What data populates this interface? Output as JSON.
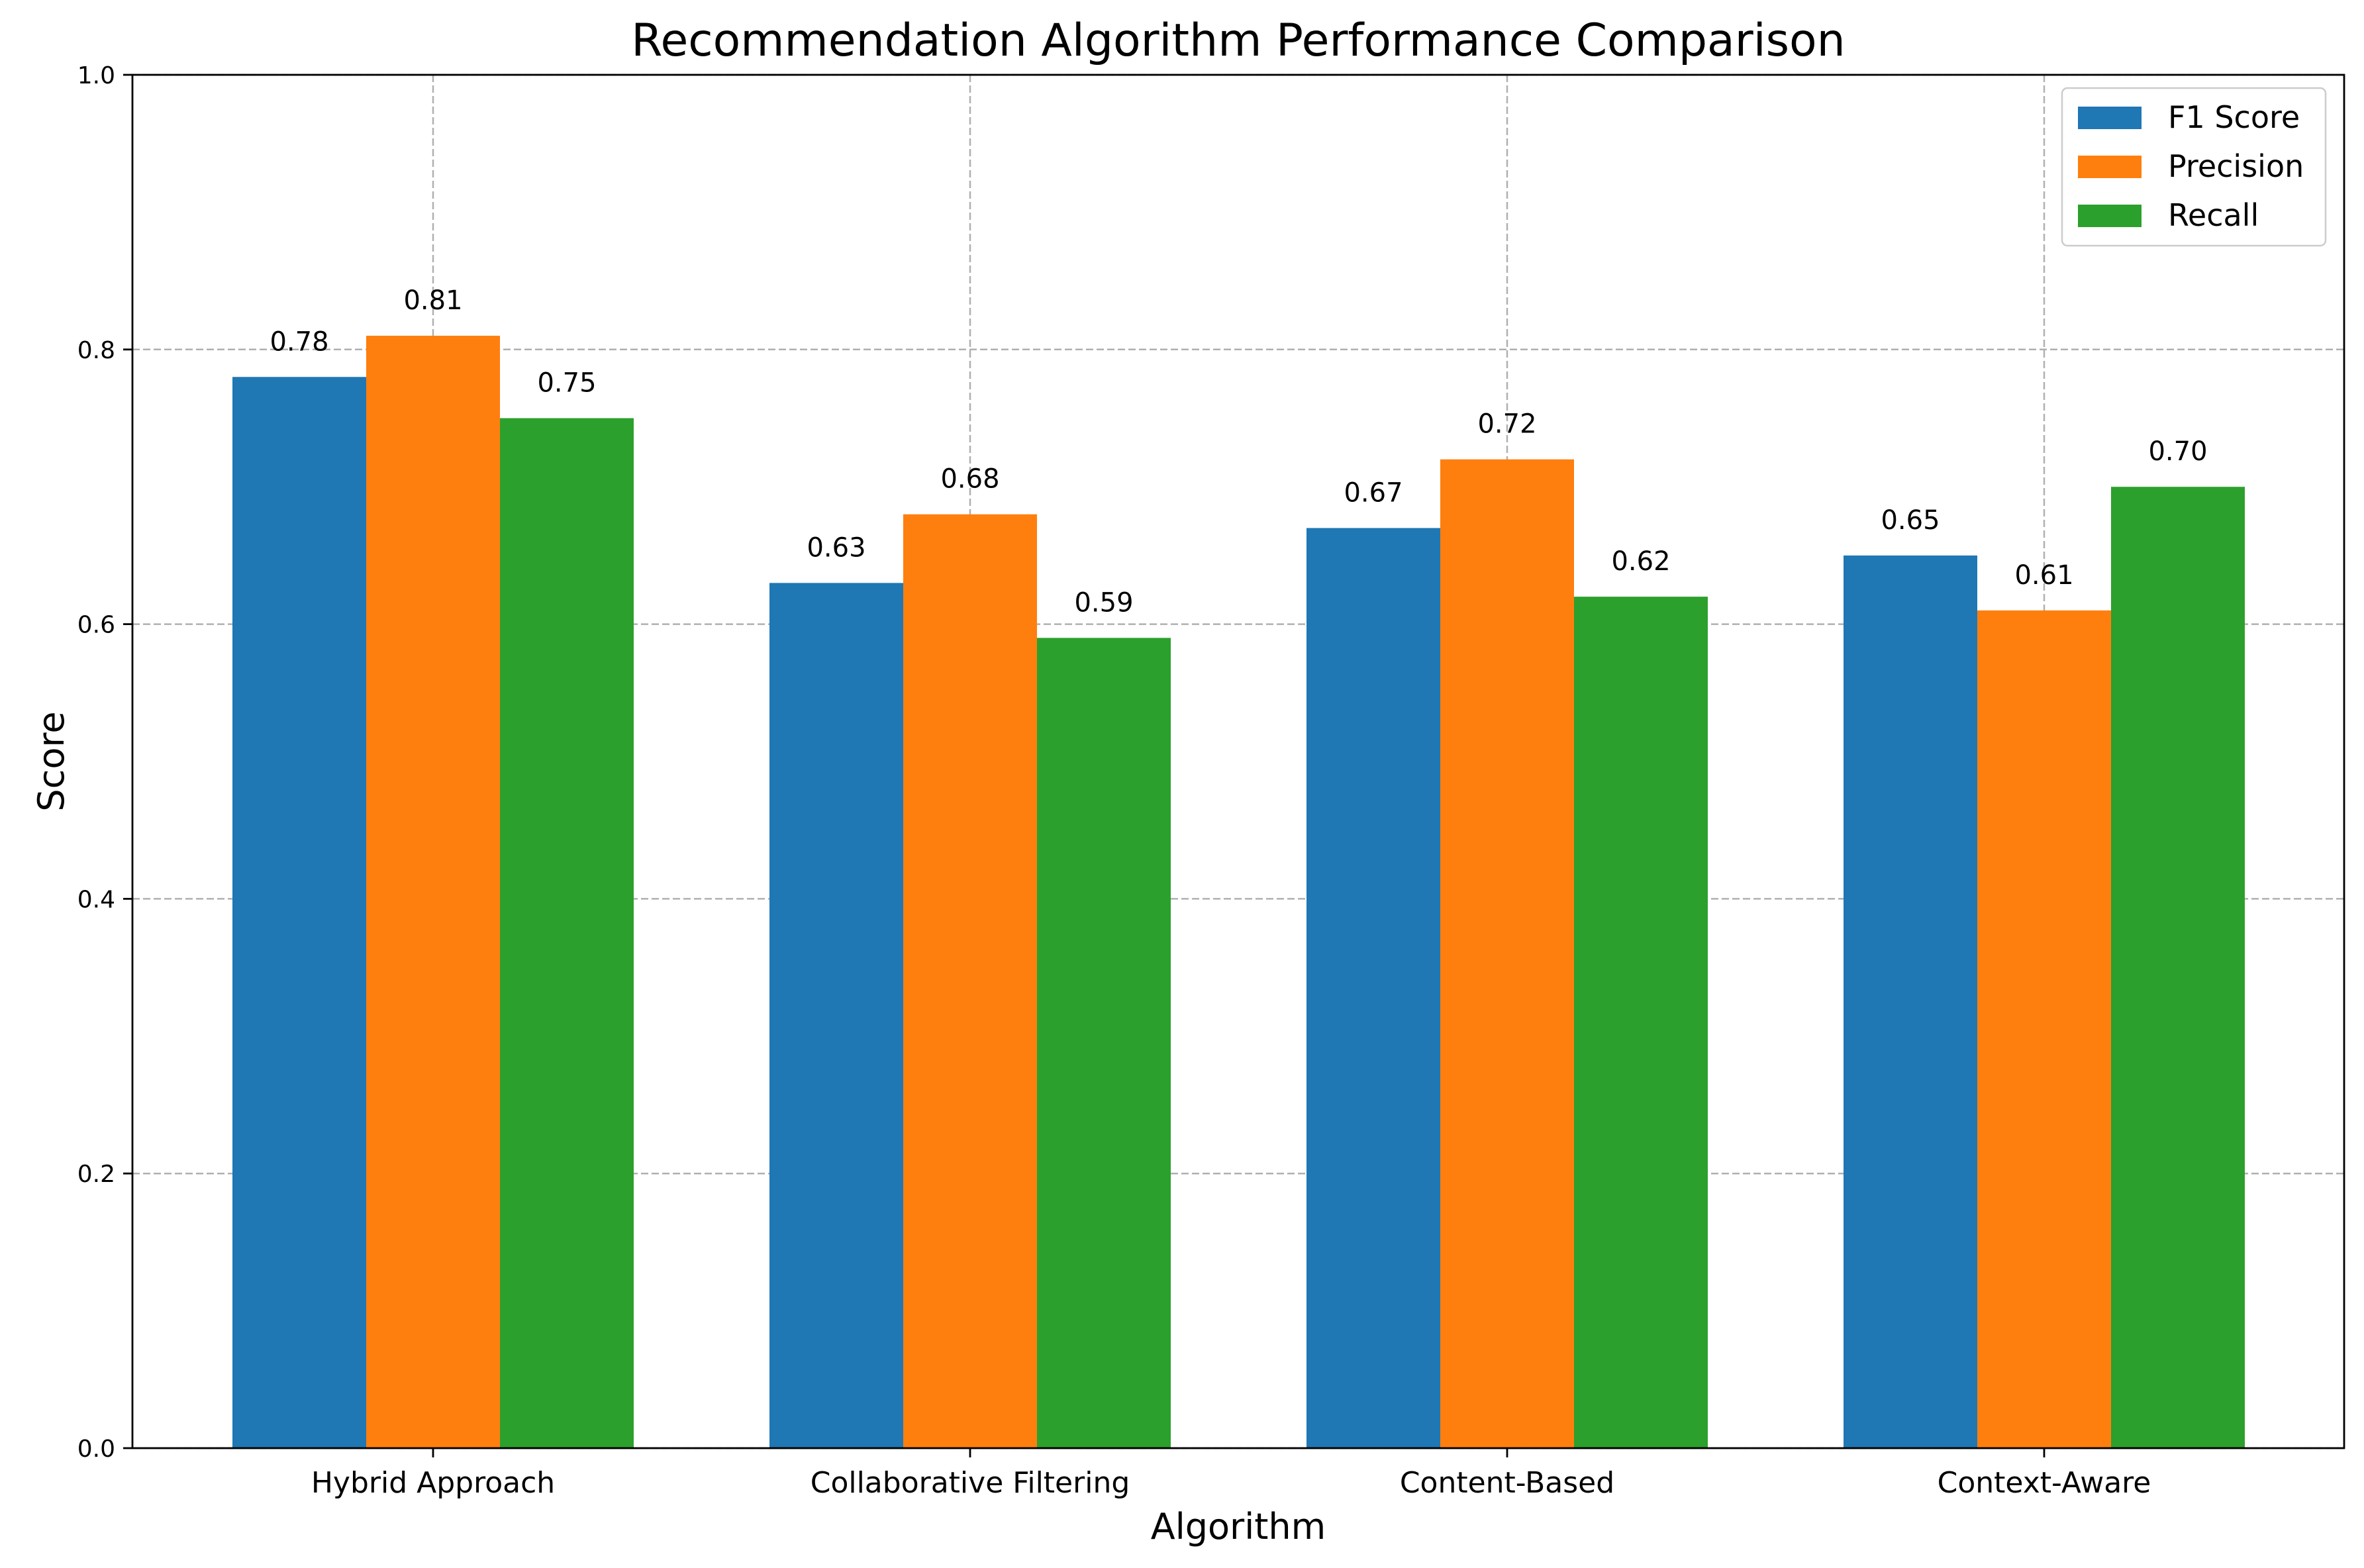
{
  "chart_data": {
    "type": "bar",
    "title": "Recommendation Algorithm Performance Comparison",
    "xlabel": "Algorithm",
    "ylabel": "Score",
    "categories": [
      "Hybrid Approach",
      "Collaborative Filtering",
      "Content-Based",
      "Context-Aware"
    ],
    "series": [
      {
        "name": "F1 Score",
        "color": "#1f77b4",
        "values": [
          0.78,
          0.63,
          0.67,
          0.65
        ]
      },
      {
        "name": "Precision",
        "color": "#ff7f0e",
        "values": [
          0.81,
          0.68,
          0.72,
          0.61
        ]
      },
      {
        "name": "Recall",
        "color": "#2ca02c",
        "values": [
          0.75,
          0.59,
          0.62,
          0.7
        ]
      }
    ],
    "ylim": [
      0,
      1.0
    ],
    "yticks": [
      "0.0",
      "0.2",
      "0.4",
      "0.6",
      "0.8",
      "1.0"
    ],
    "grid": true,
    "legend_position": "top-right"
  }
}
